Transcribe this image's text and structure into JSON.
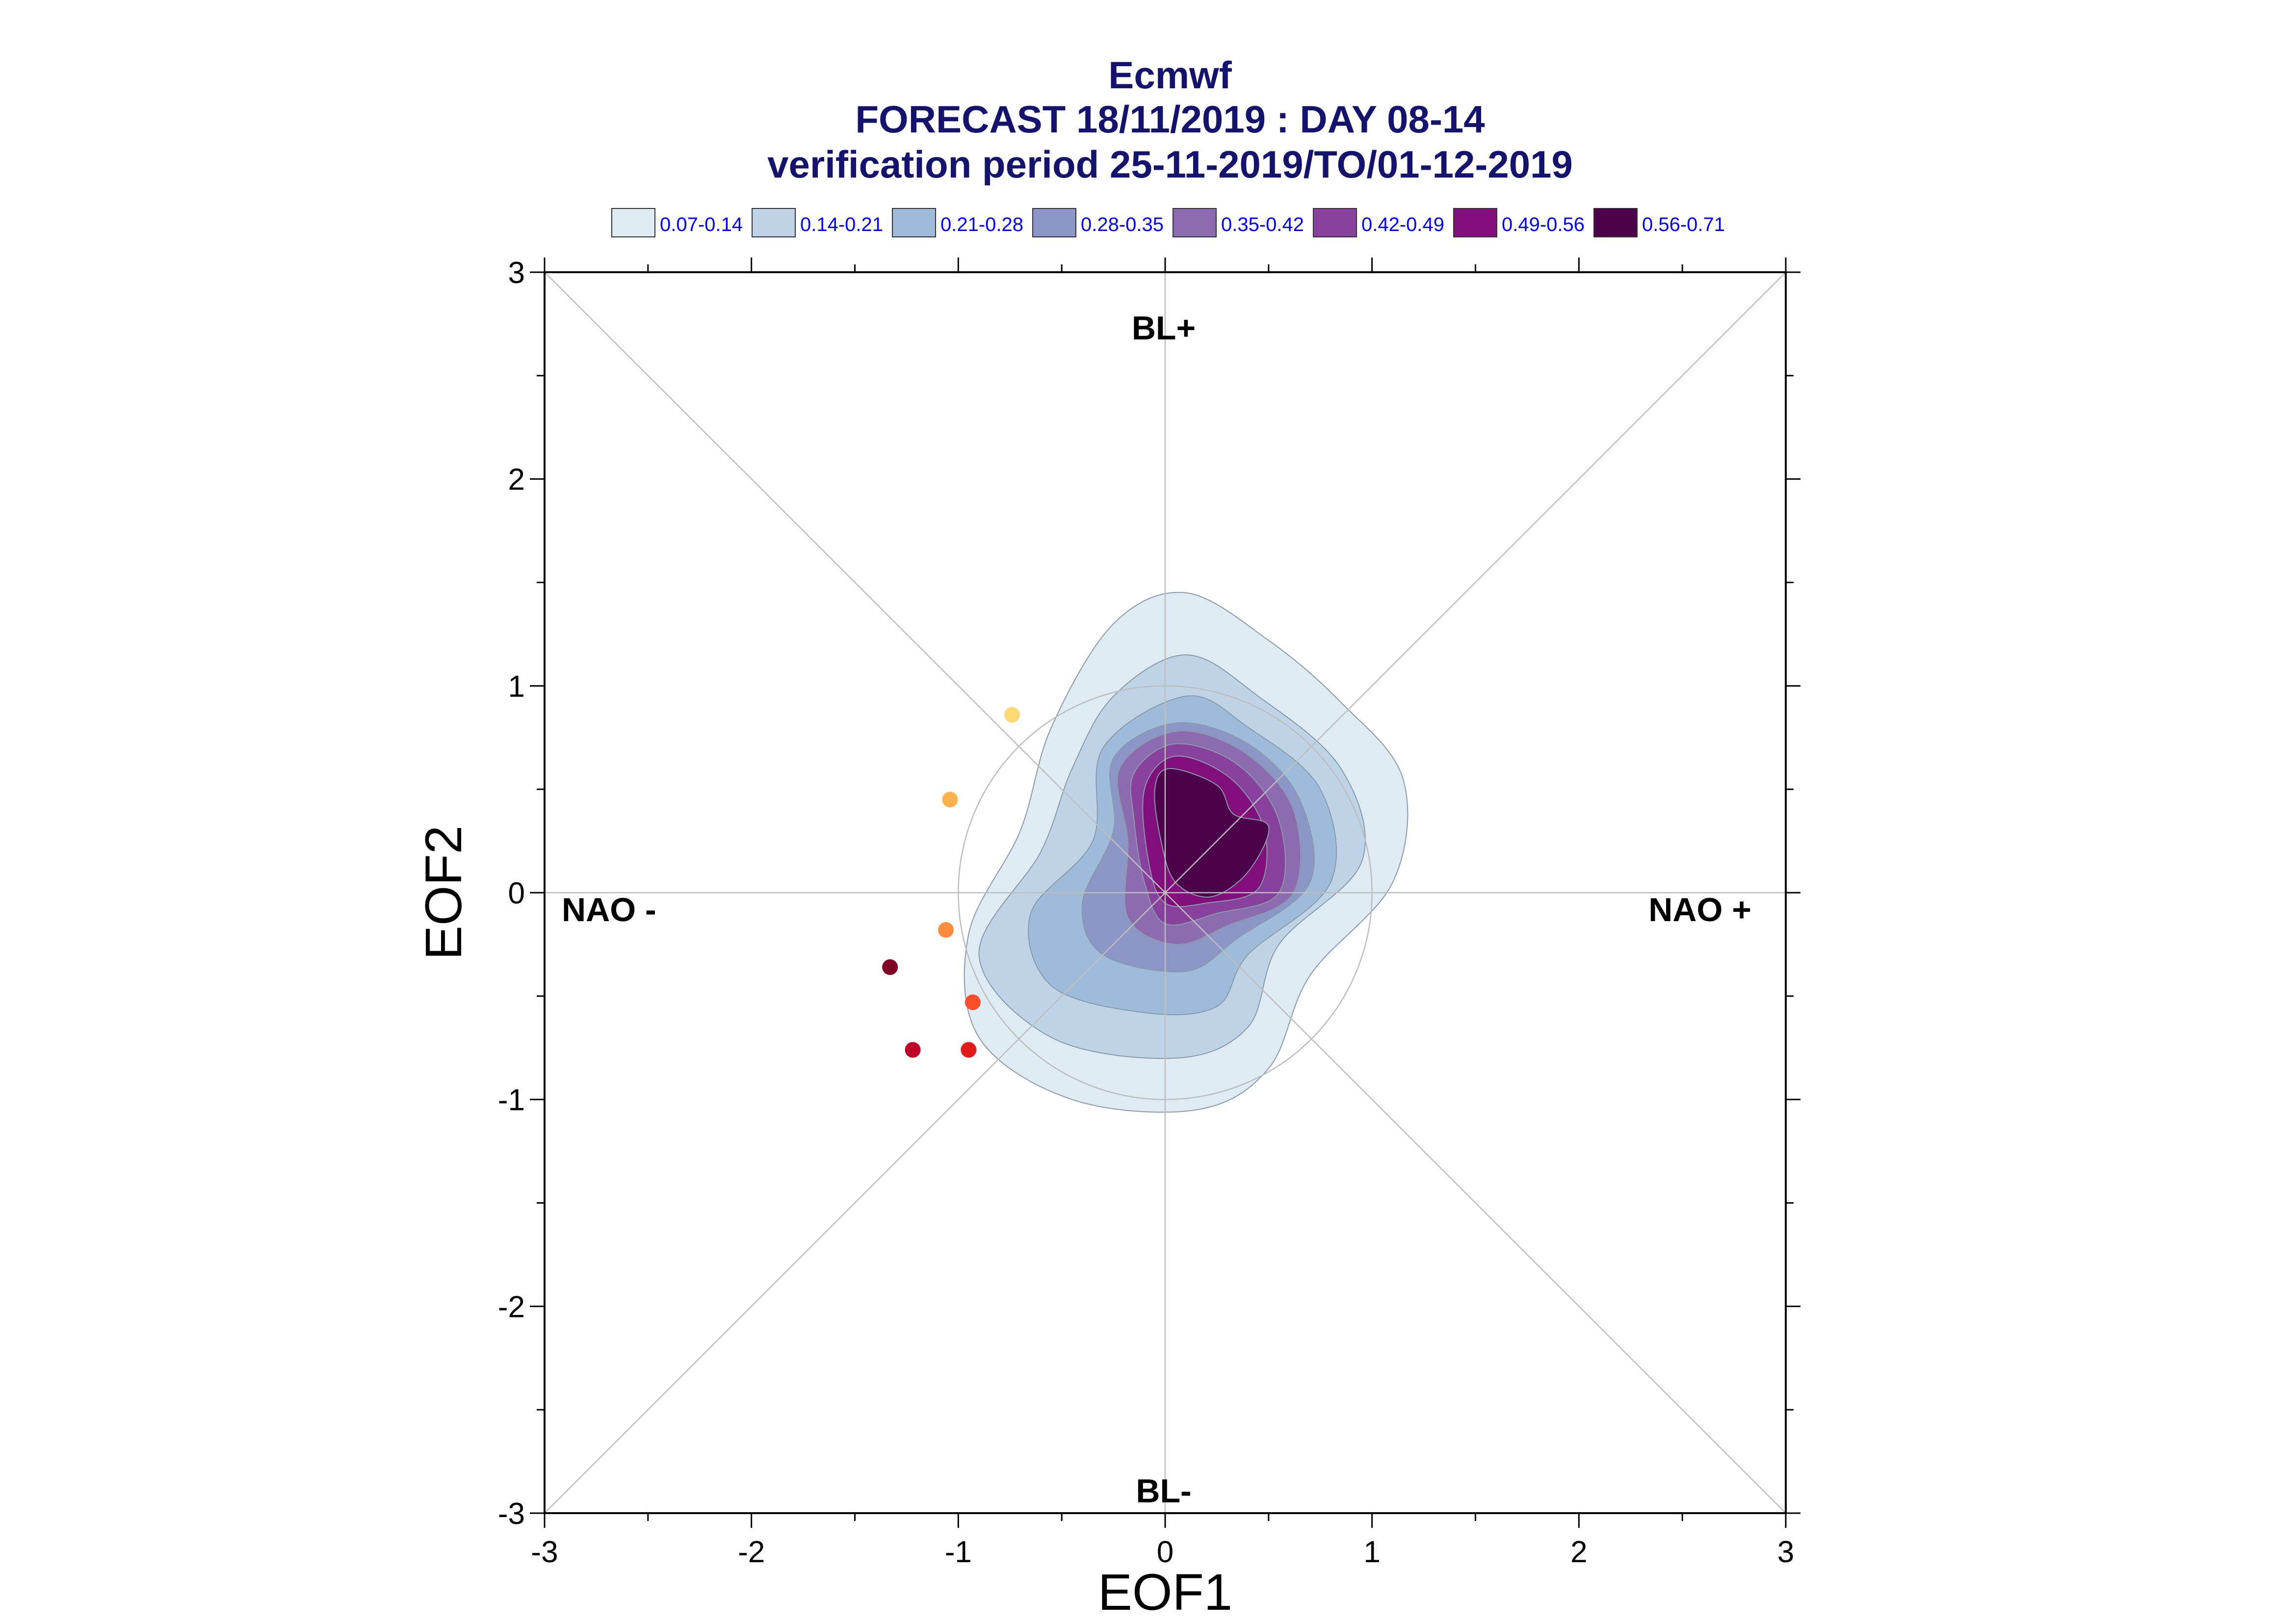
{
  "chart_data": {
    "type": "scatter",
    "title_lines": [
      "Ecmwf",
      "FORECAST 18/11/2019 : DAY 08-14",
      "verification period 25-11-2019/TO/01-12-2019"
    ],
    "xlabel": "EOF1",
    "ylabel": "EOF2",
    "xlim": [
      -3,
      3
    ],
    "ylim": [
      -3,
      3
    ],
    "xticks": [
      "-3",
      "-2",
      "-1",
      "0",
      "1",
      "2",
      "3"
    ],
    "yticks": [
      "-3",
      "-2",
      "-1",
      "0",
      "1",
      "2",
      "3"
    ],
    "regime_labels": {
      "top": "BL+",
      "bottom": "BL-",
      "left": "NAO -",
      "right": "NAO +"
    },
    "legend_placement": "top",
    "density_legend": [
      {
        "label": "0.07-0.14",
        "color": "#dfebf3"
      },
      {
        "label": "0.14-0.21",
        "color": "#bfd3e6"
      },
      {
        "label": "0.21-0.28",
        "color": "#9ebcda"
      },
      {
        "label": "0.28-0.35",
        "color": "#8c96c6"
      },
      {
        "label": "0.35-0.42",
        "color": "#8c6bb1"
      },
      {
        "label": "0.42-0.49",
        "color": "#88419d"
      },
      {
        "label": "0.49-0.56",
        "color": "#810f7c"
      },
      {
        "label": "0.56-0.71",
        "color": "#4d004b"
      }
    ],
    "reference_circle": {
      "center": [
        0,
        0
      ],
      "radius": 1
    },
    "density_contours": [
      [
        [
          0.1,
          1.45
        ],
        [
          0.5,
          1.22
        ],
        [
          0.85,
          0.92
        ],
        [
          1.15,
          0.55
        ],
        [
          1.1,
          0.05
        ],
        [
          0.7,
          -0.4
        ],
        [
          0.5,
          -0.85
        ],
        [
          0.15,
          -1.05
        ],
        [
          -0.45,
          -1.0
        ],
        [
          -0.9,
          -0.7
        ],
        [
          -0.95,
          -0.2
        ],
        [
          -0.7,
          0.3
        ],
        [
          -0.55,
          0.8
        ],
        [
          -0.25,
          1.3
        ]
      ],
      [
        [
          0.1,
          1.15
        ],
        [
          0.45,
          0.95
        ],
        [
          0.85,
          0.6
        ],
        [
          0.95,
          0.15
        ],
        [
          0.55,
          -0.25
        ],
        [
          0.4,
          -0.65
        ],
        [
          0.05,
          -0.8
        ],
        [
          -0.55,
          -0.7
        ],
        [
          -0.9,
          -0.3
        ],
        [
          -0.6,
          0.2
        ],
        [
          -0.45,
          0.6
        ],
        [
          -0.25,
          0.95
        ]
      ],
      [
        [
          0.1,
          0.95
        ],
        [
          0.4,
          0.8
        ],
        [
          0.75,
          0.5
        ],
        [
          0.8,
          0.05
        ],
        [
          0.4,
          -0.3
        ],
        [
          0.25,
          -0.55
        ],
        [
          -0.1,
          -0.58
        ],
        [
          -0.55,
          -0.45
        ],
        [
          -0.65,
          -0.1
        ],
        [
          -0.35,
          0.25
        ],
        [
          -0.3,
          0.7
        ]
      ],
      [
        [
          0.05,
          0.82
        ],
        [
          0.4,
          0.72
        ],
        [
          0.65,
          0.45
        ],
        [
          0.7,
          0.05
        ],
        [
          0.35,
          -0.22
        ],
        [
          0.1,
          -0.38
        ],
        [
          -0.3,
          -0.3
        ],
        [
          -0.4,
          -0.05
        ],
        [
          -0.25,
          0.3
        ],
        [
          -0.25,
          0.65
        ]
      ],
      [
        [
          0.05,
          0.78
        ],
        [
          0.38,
          0.68
        ],
        [
          0.62,
          0.4
        ],
        [
          0.62,
          0.0
        ],
        [
          0.3,
          -0.16
        ],
        [
          0.05,
          -0.25
        ],
        [
          -0.18,
          -0.12
        ],
        [
          -0.18,
          0.25
        ],
        [
          -0.22,
          0.6
        ]
      ],
      [
        [
          0.05,
          0.72
        ],
        [
          0.35,
          0.62
        ],
        [
          0.55,
          0.35
        ],
        [
          0.55,
          0.0
        ],
        [
          0.25,
          -0.1
        ],
        [
          0.0,
          -0.15
        ],
        [
          -0.1,
          0.05
        ],
        [
          -0.15,
          0.35
        ],
        [
          -0.15,
          0.58
        ]
      ],
      [
        [
          0.05,
          0.66
        ],
        [
          0.32,
          0.55
        ],
        [
          0.48,
          0.3
        ],
        [
          0.45,
          0.02
        ],
        [
          0.2,
          -0.05
        ],
        [
          0.0,
          -0.05
        ],
        [
          -0.08,
          0.15
        ],
        [
          -0.1,
          0.5
        ]
      ],
      [
        [
          0.02,
          0.6
        ],
        [
          0.25,
          0.52
        ],
        [
          0.33,
          0.38
        ],
        [
          0.5,
          0.32
        ],
        [
          0.4,
          0.1
        ],
        [
          0.22,
          -0.02
        ],
        [
          0.05,
          0.05
        ],
        [
          -0.02,
          0.25
        ],
        [
          -0.05,
          0.5
        ]
      ]
    ],
    "points": [
      {
        "x": -0.74,
        "y": 0.86,
        "color": "#fed976"
      },
      {
        "x": -1.04,
        "y": 0.45,
        "color": "#feb24c"
      },
      {
        "x": -1.06,
        "y": -0.18,
        "color": "#fd8d3c"
      },
      {
        "x": -0.93,
        "y": -0.53,
        "color": "#fc4e2a"
      },
      {
        "x": -0.95,
        "y": -0.76,
        "color": "#e31a1c"
      },
      {
        "x": -1.22,
        "y": -0.76,
        "color": "#bd0026"
      },
      {
        "x": -1.33,
        "y": -0.36,
        "color": "#800026"
      }
    ]
  }
}
